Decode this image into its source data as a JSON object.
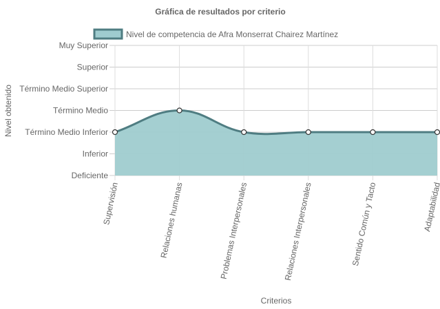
{
  "chart_data": {
    "type": "area",
    "title": "Gráfica de resultados por criterio",
    "xlabel": "Criterios",
    "ylabel": "Nivel obtenido",
    "categories": [
      "Supervisión",
      "Relaciones humanas",
      "Problemas Interpersonales",
      "Relaciones Interpersonales",
      "Sentido Común y Tacto",
      "Adaptabilidad"
    ],
    "y_levels": [
      "Deficiente",
      "Inferior",
      "Término Medio Inferior",
      "Término Medio",
      "Término Medio Superior",
      "Superior",
      "Muy Superior"
    ],
    "series": [
      {
        "name": "Nivel de competencia de Afra Monserrat Chairez Martínez",
        "values": [
          3,
          4,
          3,
          3,
          3,
          3
        ]
      }
    ],
    "ylim": [
      1,
      7
    ],
    "grid": true,
    "legend": "top",
    "colors": {
      "fill": "#9fcccf",
      "line": "#4f7d82",
      "grid": "#dddddd",
      "text": "#666666"
    }
  }
}
